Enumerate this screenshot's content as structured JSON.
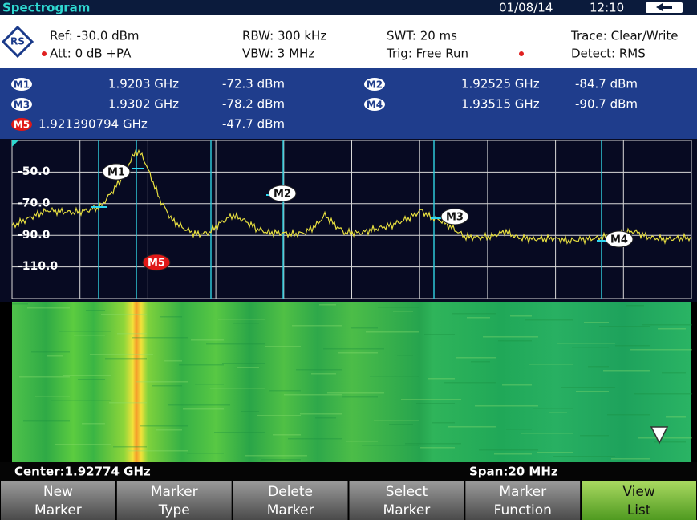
{
  "title_bar": {
    "title": "Spectrogram",
    "date": "01/08/14",
    "time": "12:10"
  },
  "settings": {
    "row1": [
      "Ref: -30.0 dBm",
      "RBW: 300 kHz",
      "SWT: 20 ms",
      "Trace: Clear/Write"
    ],
    "row2": [
      "Att: 0 dB +PA",
      "VBW: 3 MHz",
      "Trig: Free Run",
      "Detect: RMS"
    ]
  },
  "markers": [
    {
      "label": "M1",
      "frequency": "1.9203 GHz",
      "level": "-72.3 dBm"
    },
    {
      "label": "M2",
      "frequency": "1.92525 GHz",
      "level": "-84.7 dBm"
    },
    {
      "label": "M3",
      "frequency": "1.9302 GHz",
      "level": "-78.2 dBm"
    },
    {
      "label": "M4",
      "frequency": "1.93515 GHz",
      "level": "-90.7 dBm"
    },
    {
      "label": "M5",
      "frequency": "1.921390794 GHz",
      "level": "-47.7 dBm"
    }
  ],
  "plot": {
    "y_labels": [
      "-50.0",
      "-70.0",
      "-90.0",
      "-110.0"
    ]
  },
  "status": {
    "center": "Center:1.92774 GHz",
    "span": "Span:20 MHz"
  },
  "softkeys": [
    [
      "New",
      "Marker"
    ],
    [
      "Marker",
      "Type"
    ],
    [
      "Delete",
      "Marker"
    ],
    [
      "Select",
      "Marker"
    ],
    [
      "Marker",
      "Function"
    ],
    [
      "View",
      "List"
    ]
  ]
}
